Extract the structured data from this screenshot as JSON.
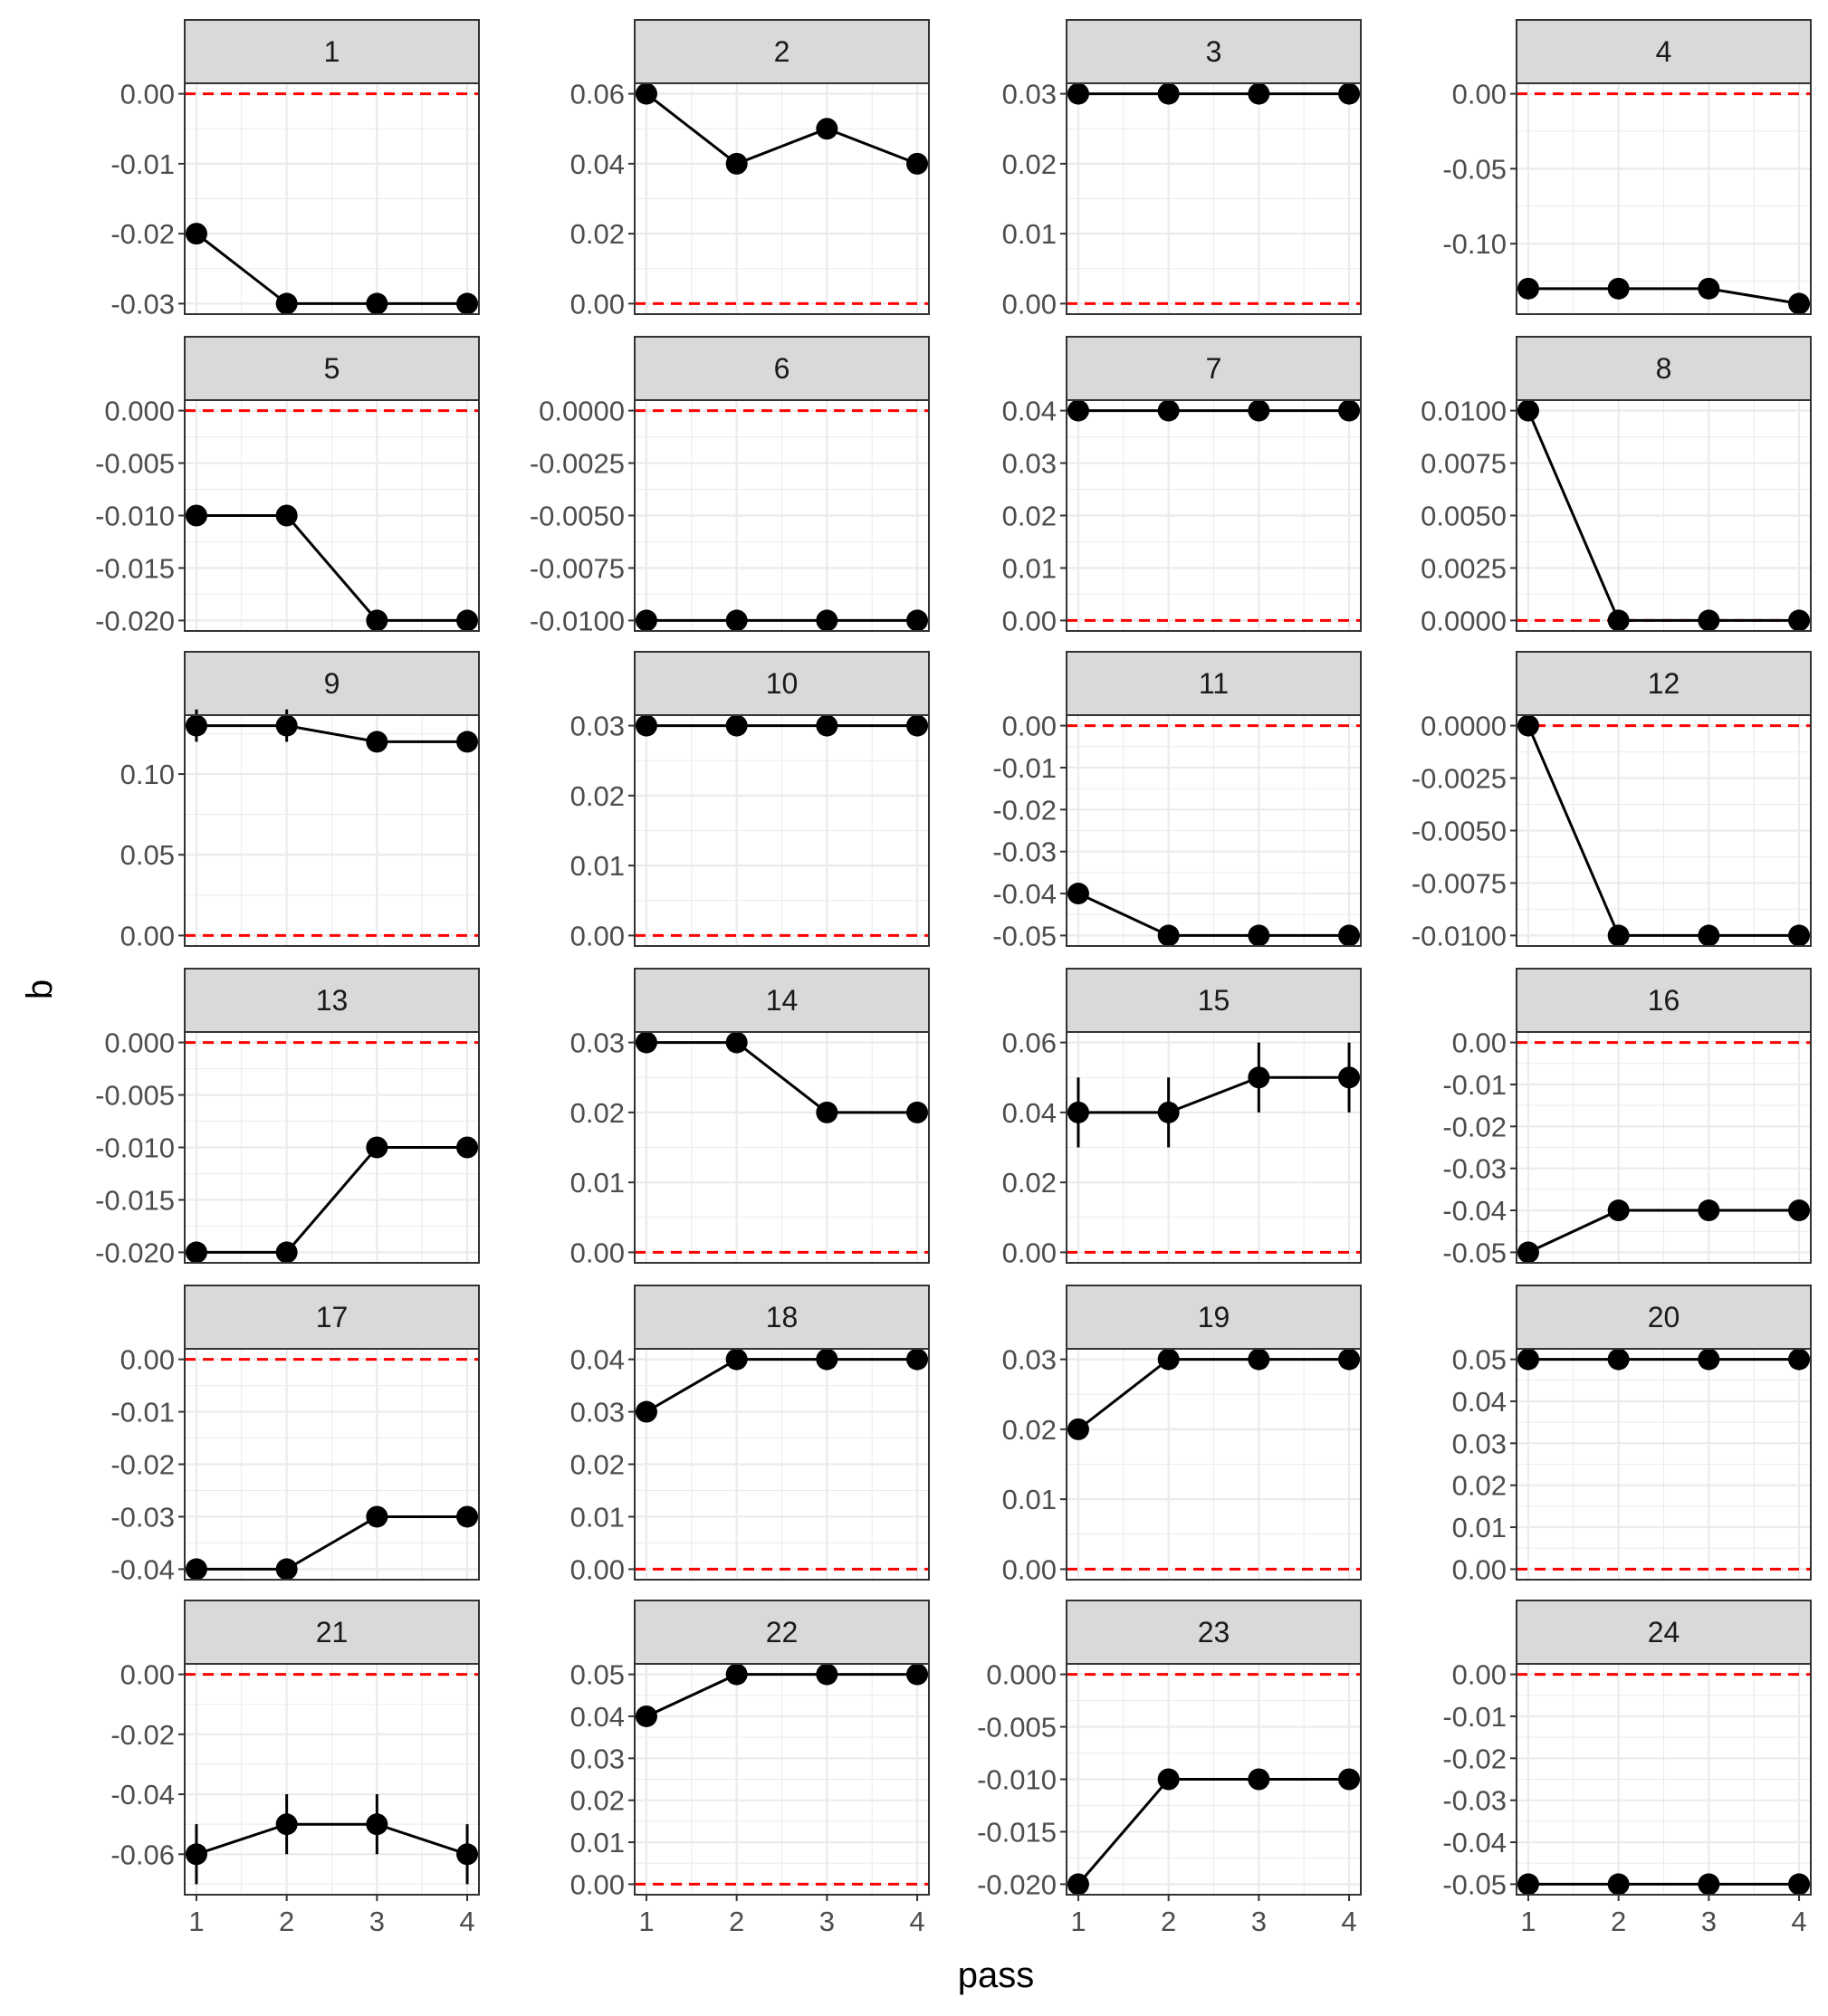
{
  "chart_data": {
    "type": "line",
    "xlabel": "pass",
    "ylabel": "b",
    "x": [
      1,
      2,
      3,
      4
    ],
    "x_ticks": [
      "1",
      "2",
      "3",
      "4"
    ],
    "xlim": [
      0.87,
      4.13
    ],
    "grid": true,
    "reference_line": {
      "y": 0,
      "style": "dashed",
      "color": "#ff0000"
    },
    "colors": {
      "line": "#000000",
      "point": "#000000",
      "strip_fill": "#d9d9d9",
      "grid": "#ebebeb",
      "panel_border": "#333333",
      "reference": "#ff0000"
    },
    "panels": [
      {
        "label": "1",
        "values": [
          -0.02,
          -0.03,
          -0.03,
          -0.03
        ],
        "ylim": [
          -0.0315,
          0.0015
        ],
        "yticks": [
          0,
          -0.01,
          -0.02,
          -0.03
        ],
        "ytick_labels": [
          "0.00",
          "-0.01",
          "-0.02",
          "-0.03"
        ]
      },
      {
        "label": "2",
        "values": [
          0.06,
          0.04,
          0.05,
          0.04
        ],
        "ylim": [
          -0.003,
          0.063
        ],
        "yticks": [
          0.06,
          0.04,
          0.02,
          0
        ],
        "ytick_labels": [
          "0.06",
          "0.04",
          "0.02",
          "0.00"
        ]
      },
      {
        "label": "3",
        "values": [
          0.03,
          0.03,
          0.03,
          0.03
        ],
        "ylim": [
          -0.0015,
          0.0315
        ],
        "yticks": [
          0.03,
          0.02,
          0.01,
          0
        ],
        "ytick_labels": [
          "0.03",
          "0.02",
          "0.01",
          "0.00"
        ]
      },
      {
        "label": "4",
        "values": [
          -0.13,
          -0.13,
          -0.13,
          -0.14
        ],
        "ylim": [
          -0.147,
          0.007
        ],
        "yticks": [
          0,
          -0.05,
          -0.1
        ],
        "ytick_labels": [
          "0.00",
          "-0.05",
          "-0.10"
        ]
      },
      {
        "label": "5",
        "values": [
          -0.01,
          -0.01,
          -0.02,
          -0.02
        ],
        "ylim": [
          -0.021,
          0.001
        ],
        "yticks": [
          0,
          -0.005,
          -0.01,
          -0.015,
          -0.02
        ],
        "ytick_labels": [
          "0.000",
          "-0.005",
          "-0.010",
          "-0.015",
          "-0.020"
        ]
      },
      {
        "label": "6",
        "values": [
          -0.01,
          -0.01,
          -0.01,
          -0.01
        ],
        "ylim": [
          -0.0105,
          0.0005
        ],
        "yticks": [
          0,
          -0.0025,
          -0.005,
          -0.0075,
          -0.01
        ],
        "ytick_labels": [
          "0.0000",
          "-0.0025",
          "-0.0050",
          "-0.0075",
          "-0.0100"
        ]
      },
      {
        "label": "7",
        "values": [
          0.04,
          0.04,
          0.04,
          0.04
        ],
        "ylim": [
          -0.002,
          0.042
        ],
        "yticks": [
          0.04,
          0.03,
          0.02,
          0.01,
          0
        ],
        "ytick_labels": [
          "0.04",
          "0.03",
          "0.02",
          "0.01",
          "0.00"
        ]
      },
      {
        "label": "8",
        "values": [
          0.01,
          0,
          0,
          0
        ],
        "ylim": [
          -0.0005,
          0.0105
        ],
        "yticks": [
          0.01,
          0.0075,
          0.005,
          0.0025,
          0
        ],
        "ytick_labels": [
          "0.0100",
          "0.0075",
          "0.0050",
          "0.0025",
          "0.0000"
        ]
      },
      {
        "label": "9",
        "values": [
          0.13,
          0.13,
          0.12,
          0.12
        ],
        "ylim": [
          -0.0065,
          0.1365
        ],
        "yticks": [
          0.1,
          0.05,
          0
        ],
        "ytick_labels": [
          "0.10",
          "0.05",
          "0.00"
        ],
        "errors": [
          0.01,
          0.01,
          0,
          0
        ]
      },
      {
        "label": "10",
        "values": [
          0.03,
          0.03,
          0.03,
          0.03
        ],
        "ylim": [
          -0.0015,
          0.0315
        ],
        "yticks": [
          0.03,
          0.02,
          0.01,
          0
        ],
        "ytick_labels": [
          "0.03",
          "0.02",
          "0.01",
          "0.00"
        ]
      },
      {
        "label": "11",
        "values": [
          -0.04,
          -0.05,
          -0.05,
          -0.05
        ],
        "ylim": [
          -0.0525,
          0.0025
        ],
        "yticks": [
          0,
          -0.01,
          -0.02,
          -0.03,
          -0.04,
          -0.05
        ],
        "ytick_labels": [
          "0.00",
          "-0.01",
          "-0.02",
          "-0.03",
          "-0.04",
          "-0.05"
        ]
      },
      {
        "label": "12",
        "values": [
          0,
          -0.01,
          -0.01,
          -0.01
        ],
        "ylim": [
          -0.0105,
          0.0005
        ],
        "yticks": [
          0,
          -0.0025,
          -0.005,
          -0.0075,
          -0.01
        ],
        "ytick_labels": [
          "0.0000",
          "-0.0025",
          "-0.0050",
          "-0.0075",
          "-0.0100"
        ]
      },
      {
        "label": "13",
        "values": [
          -0.02,
          -0.02,
          -0.01,
          -0.01
        ],
        "ylim": [
          -0.021,
          0.001
        ],
        "yticks": [
          0,
          -0.005,
          -0.01,
          -0.015,
          -0.02
        ],
        "ytick_labels": [
          "0.000",
          "-0.005",
          "-0.010",
          "-0.015",
          "-0.020"
        ]
      },
      {
        "label": "14",
        "values": [
          0.03,
          0.03,
          0.02,
          0.02
        ],
        "ylim": [
          -0.0015,
          0.0315
        ],
        "yticks": [
          0.03,
          0.02,
          0.01,
          0
        ],
        "ytick_labels": [
          "0.03",
          "0.02",
          "0.01",
          "0.00"
        ]
      },
      {
        "label": "15",
        "values": [
          0.04,
          0.04,
          0.05,
          0.05
        ],
        "ylim": [
          -0.003,
          0.063
        ],
        "yticks": [
          0.06,
          0.04,
          0.02,
          0
        ],
        "ytick_labels": [
          "0.06",
          "0.04",
          "0.02",
          "0.00"
        ],
        "errors": [
          0.01,
          0.01,
          0.01,
          0.01
        ]
      },
      {
        "label": "16",
        "values": [
          -0.05,
          -0.04,
          -0.04,
          -0.04
        ],
        "ylim": [
          -0.0525,
          0.0025
        ],
        "yticks": [
          0,
          -0.01,
          -0.02,
          -0.03,
          -0.04,
          -0.05
        ],
        "ytick_labels": [
          "0.00",
          "-0.01",
          "-0.02",
          "-0.03",
          "-0.04",
          "-0.05"
        ]
      },
      {
        "label": "17",
        "values": [
          -0.04,
          -0.04,
          -0.03,
          -0.03
        ],
        "ylim": [
          -0.042,
          0.002
        ],
        "yticks": [
          0,
          -0.01,
          -0.02,
          -0.03,
          -0.04
        ],
        "ytick_labels": [
          "0.00",
          "-0.01",
          "-0.02",
          "-0.03",
          "-0.04"
        ]
      },
      {
        "label": "18",
        "values": [
          0.03,
          0.04,
          0.04,
          0.04
        ],
        "ylim": [
          -0.002,
          0.042
        ],
        "yticks": [
          0.04,
          0.03,
          0.02,
          0.01,
          0
        ],
        "ytick_labels": [
          "0.04",
          "0.03",
          "0.02",
          "0.01",
          "0.00"
        ]
      },
      {
        "label": "19",
        "values": [
          0.02,
          0.03,
          0.03,
          0.03
        ],
        "ylim": [
          -0.0015,
          0.0315
        ],
        "yticks": [
          0.03,
          0.02,
          0.01,
          0
        ],
        "ytick_labels": [
          "0.03",
          "0.02",
          "0.01",
          "0.00"
        ]
      },
      {
        "label": "20",
        "values": [
          0.05,
          0.05,
          0.05,
          0.05
        ],
        "ylim": [
          -0.0025,
          0.0525
        ],
        "yticks": [
          0.05,
          0.04,
          0.03,
          0.02,
          0.01,
          0
        ],
        "ytick_labels": [
          "0.05",
          "0.04",
          "0.03",
          "0.02",
          "0.01",
          "0.00"
        ]
      },
      {
        "label": "21",
        "values": [
          -0.06,
          -0.05,
          -0.05,
          -0.06
        ],
        "ylim": [
          -0.0735,
          0.0035
        ],
        "yticks": [
          0,
          -0.02,
          -0.04,
          -0.06
        ],
        "ytick_labels": [
          "0.00",
          "-0.02",
          "-0.04",
          "-0.06"
        ],
        "errors": [
          0.01,
          0.01,
          0.01,
          0.01
        ]
      },
      {
        "label": "22",
        "values": [
          0.04,
          0.05,
          0.05,
          0.05
        ],
        "ylim": [
          -0.0025,
          0.0525
        ],
        "yticks": [
          0.05,
          0.04,
          0.03,
          0.02,
          0.01,
          0
        ],
        "ytick_labels": [
          "0.05",
          "0.04",
          "0.03",
          "0.02",
          "0.01",
          "0.00"
        ]
      },
      {
        "label": "23",
        "values": [
          -0.02,
          -0.01,
          -0.01,
          -0.01
        ],
        "ylim": [
          -0.021,
          0.001
        ],
        "yticks": [
          0,
          -0.005,
          -0.01,
          -0.015,
          -0.02
        ],
        "ytick_labels": [
          "0.000",
          "-0.005",
          "-0.010",
          "-0.015",
          "-0.020"
        ]
      },
      {
        "label": "24",
        "values": [
          -0.05,
          -0.05,
          -0.05,
          -0.05
        ],
        "ylim": [
          -0.0525,
          0.0025
        ],
        "yticks": [
          0,
          -0.01,
          -0.02,
          -0.03,
          -0.04,
          -0.05
        ],
        "ytick_labels": [
          "0.00",
          "-0.01",
          "-0.02",
          "-0.03",
          "-0.04",
          "-0.05"
        ]
      }
    ]
  }
}
